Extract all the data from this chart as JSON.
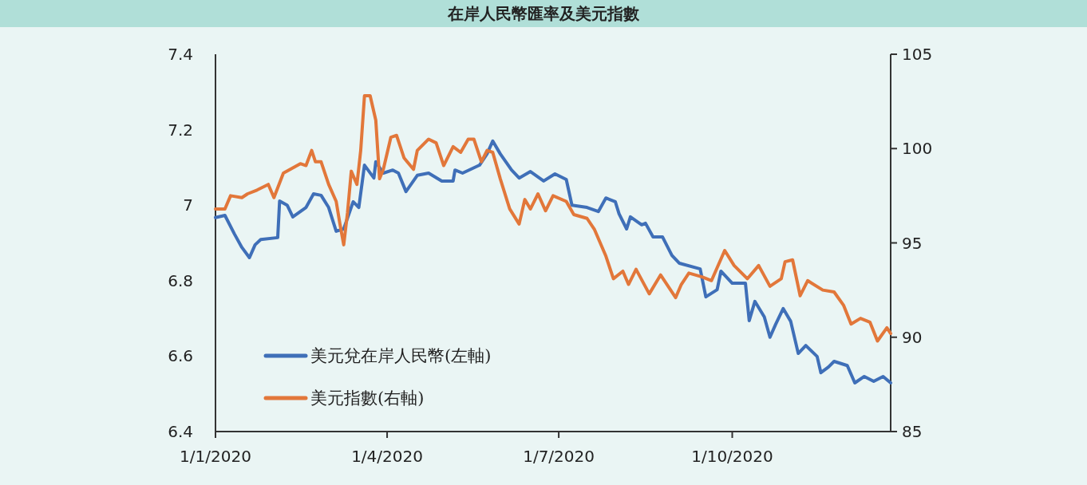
{
  "chart_data": {
    "type": "line",
    "title": "在岸人民幣匯率及美元指數",
    "xlim": [
      "2020-01-01",
      "2020-12-24"
    ],
    "xticks": [
      {
        "value": "2020-01-01",
        "label": "1/1/2020"
      },
      {
        "value": "2020-04-01",
        "label": "1/4/2020"
      },
      {
        "value": "2020-07-01",
        "label": "1/7/2020"
      },
      {
        "value": "2020-10-01",
        "label": "1/10/2020"
      }
    ],
    "ylim": [
      6.4,
      7.4
    ],
    "yticks": [
      6.4,
      6.6,
      6.8,
      7,
      7.2,
      7.4
    ],
    "y2lim": [
      85,
      105
    ],
    "y2ticks": [
      85,
      90,
      95,
      100,
      105
    ],
    "grid": false,
    "legend": "bottom left",
    "marker": "none",
    "line_style": "solid",
    "series": [
      {
        "name": "美元兌在岸人民幣(左軸)",
        "color": "#3f6fb8",
        "x": [
          "2020-01-01",
          "2020-01-06",
          "2020-01-11",
          "2020-01-15",
          "2020-01-19",
          "2020-01-22",
          "2020-01-25",
          "2020-02-03",
          "2020-02-04",
          "2020-02-08",
          "2020-02-11",
          "2020-02-18",
          "2020-02-22",
          "2020-02-26",
          "2020-03-01",
          "2020-03-05",
          "2020-03-09",
          "2020-03-14",
          "2020-03-17",
          "2020-03-20",
          "2020-03-25",
          "2020-03-26",
          "2020-03-30",
          "2020-04-04",
          "2020-04-07",
          "2020-04-11",
          "2020-04-17",
          "2020-04-23",
          "2020-04-30",
          "2020-05-06",
          "2020-05-07",
          "2020-05-11",
          "2020-05-20",
          "2020-05-24",
          "2020-05-27",
          "2020-05-31",
          "2020-06-06",
          "2020-06-10",
          "2020-06-16",
          "2020-06-23",
          "2020-06-29",
          "2020-07-05",
          "2020-07-08",
          "2020-07-16",
          "2020-07-22",
          "2020-07-26",
          "2020-07-31",
          "2020-08-02",
          "2020-08-06",
          "2020-08-08",
          "2020-08-14",
          "2020-08-16",
          "2020-08-20",
          "2020-08-25",
          "2020-08-30",
          "2020-09-03",
          "2020-09-14",
          "2020-09-17",
          "2020-09-23",
          "2020-09-25",
          "2020-10-01",
          "2020-10-08",
          "2020-10-10",
          "2020-10-13",
          "2020-10-18",
          "2020-10-21",
          "2020-10-24",
          "2020-10-28",
          "2020-11-01",
          "2020-11-05",
          "2020-11-09",
          "2020-11-15",
          "2020-11-17",
          "2020-11-21",
          "2020-11-24",
          "2020-12-01",
          "2020-12-05",
          "2020-12-10",
          "2020-12-15",
          "2020-12-20",
          "2020-12-24"
        ],
        "values": [
          6.967,
          6.973,
          6.924,
          6.888,
          6.861,
          6.895,
          6.909,
          6.914,
          7.011,
          7.0,
          6.969,
          6.994,
          7.03,
          7.026,
          6.994,
          6.931,
          6.937,
          7.009,
          6.994,
          7.106,
          7.072,
          7.115,
          7.085,
          7.093,
          7.085,
          7.036,
          7.079,
          7.085,
          7.064,
          7.064,
          7.093,
          7.085,
          7.106,
          7.136,
          7.17,
          7.136,
          7.093,
          7.072,
          7.089,
          7.064,
          7.083,
          7.068,
          7.0,
          6.994,
          6.983,
          7.019,
          7.009,
          6.977,
          6.937,
          6.969,
          6.948,
          6.952,
          6.916,
          6.916,
          6.867,
          6.846,
          6.831,
          6.757,
          6.776,
          6.825,
          6.793,
          6.793,
          6.694,
          6.745,
          6.704,
          6.65,
          6.684,
          6.726,
          6.692,
          6.607,
          6.628,
          6.599,
          6.556,
          6.571,
          6.586,
          6.575,
          6.529,
          6.546,
          6.533,
          6.546,
          6.529
        ]
      },
      {
        "name": "美元指數(右軸)",
        "color": "#e2773a",
        "axis": "y2",
        "x": [
          "2020-01-01",
          "2020-01-06",
          "2020-01-09",
          "2020-01-15",
          "2020-01-18",
          "2020-01-23",
          "2020-01-29",
          "2020-02-01",
          "2020-02-06",
          "2020-02-15",
          "2020-02-18",
          "2020-02-21",
          "2020-02-23",
          "2020-02-26",
          "2020-03-01",
          "2020-03-05",
          "2020-03-07",
          "2020-03-09",
          "2020-03-11",
          "2020-03-13",
          "2020-03-16",
          "2020-03-18",
          "2020-03-20",
          "2020-03-23",
          "2020-03-26",
          "2020-03-28",
          "2020-03-30",
          "2020-04-03",
          "2020-04-06",
          "2020-04-10",
          "2020-04-15",
          "2020-04-17",
          "2020-04-23",
          "2020-04-27",
          "2020-05-01",
          "2020-05-06",
          "2020-05-10",
          "2020-05-14",
          "2020-05-17",
          "2020-05-21",
          "2020-05-24",
          "2020-05-27",
          "2020-05-31",
          "2020-06-05",
          "2020-06-10",
          "2020-06-13",
          "2020-06-16",
          "2020-06-20",
          "2020-06-24",
          "2020-06-28",
          "2020-07-05",
          "2020-07-09",
          "2020-07-16",
          "2020-07-20",
          "2020-07-26",
          "2020-07-30",
          "2020-08-04",
          "2020-08-07",
          "2020-08-11",
          "2020-08-18",
          "2020-08-24",
          "2020-09-01",
          "2020-09-04",
          "2020-09-08",
          "2020-09-15",
          "2020-09-20",
          "2020-09-27",
          "2020-10-02",
          "2020-10-09",
          "2020-10-15",
          "2020-10-21",
          "2020-10-27",
          "2020-10-29",
          "2020-11-02",
          "2020-11-06",
          "2020-11-10",
          "2020-11-18",
          "2020-11-24",
          "2020-11-29",
          "2020-12-03",
          "2020-12-08",
          "2020-12-13",
          "2020-12-17",
          "2020-12-22",
          "2020-12-24"
        ],
        "values": [
          96.8,
          96.8,
          97.5,
          97.4,
          97.6,
          97.8,
          98.1,
          97.4,
          98.7,
          99.2,
          99.1,
          99.9,
          99.3,
          99.3,
          98.1,
          97.2,
          96.0,
          94.9,
          96.6,
          98.8,
          98.1,
          99.9,
          102.8,
          102.8,
          101.5,
          98.4,
          98.9,
          100.6,
          100.7,
          99.5,
          98.9,
          99.9,
          100.5,
          100.3,
          99.1,
          100.1,
          99.8,
          100.5,
          100.5,
          99.3,
          99.9,
          99.8,
          98.4,
          96.8,
          96.0,
          97.3,
          96.8,
          97.6,
          96.7,
          97.5,
          97.2,
          96.5,
          96.3,
          95.7,
          94.3,
          93.1,
          93.5,
          92.8,
          93.6,
          92.3,
          93.3,
          92.1,
          92.8,
          93.4,
          93.2,
          93.0,
          94.6,
          93.8,
          93.1,
          93.8,
          92.7,
          93.1,
          94.0,
          94.1,
          92.2,
          93.0,
          92.5,
          92.4,
          91.7,
          90.7,
          91.0,
          90.8,
          89.8,
          90.5,
          90.2
        ]
      }
    ]
  }
}
